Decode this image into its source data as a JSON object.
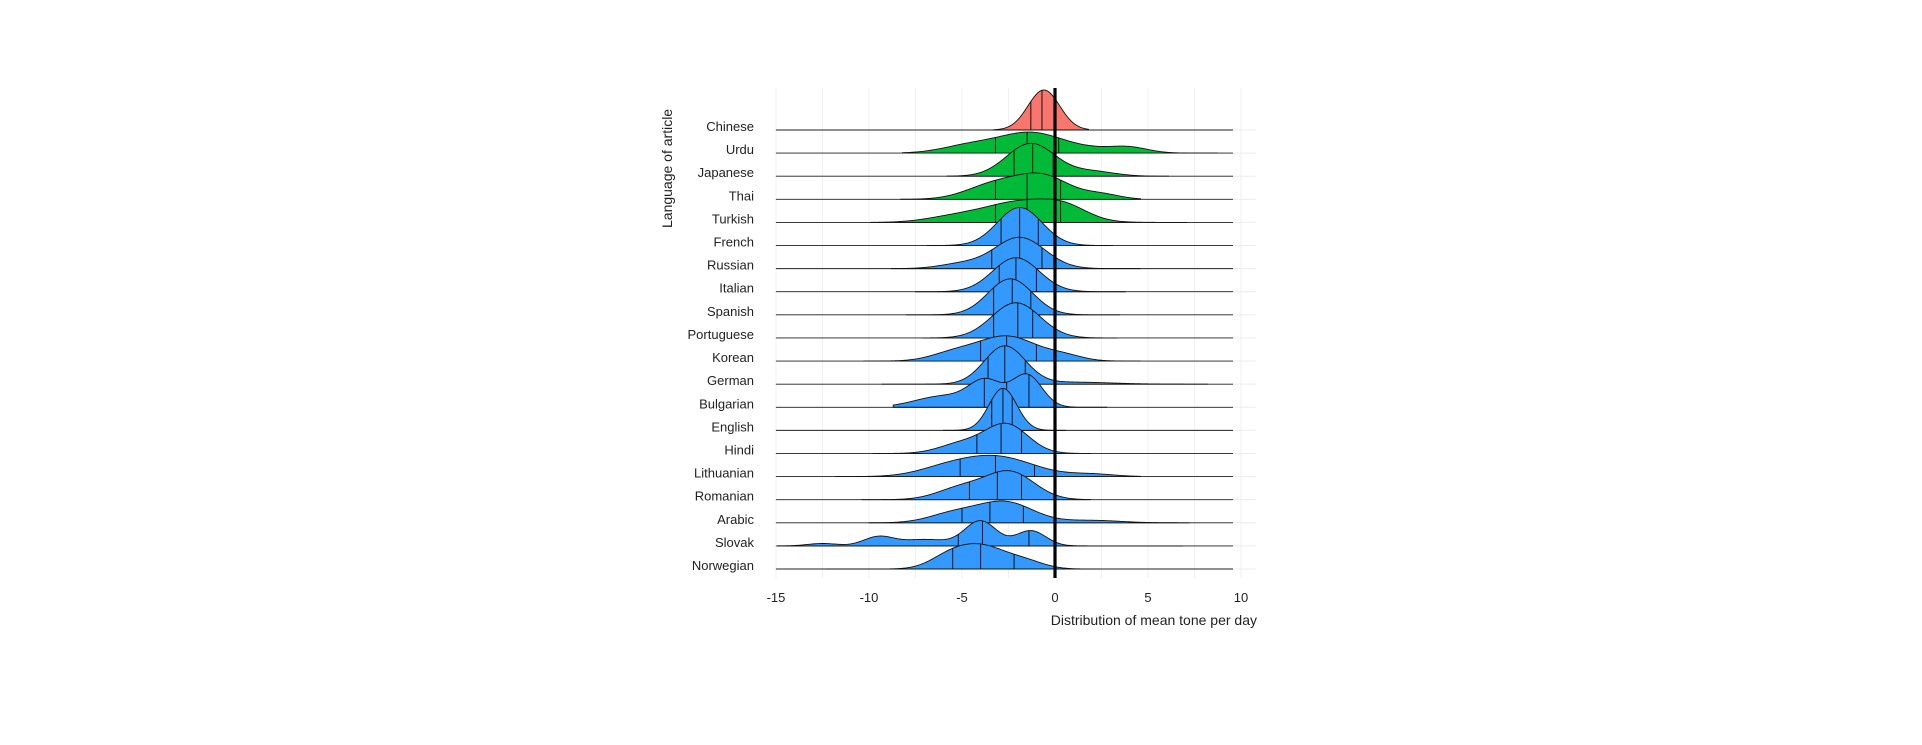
{
  "chart_data": {
    "type": "ridgeline",
    "title": "",
    "xlabel": "Distribution of mean tone per day",
    "ylabel": "Language of article",
    "xlim": [
      -15,
      10
    ],
    "xticks": [
      -15,
      -10,
      -5,
      0,
      5,
      10
    ],
    "reference_line_x": 0,
    "grid": true,
    "colors": {
      "red": "#F8766D",
      "green": "#00BA38",
      "blue": "#3399FF"
    },
    "series": [
      {
        "name": "Chinese",
        "color_group": "red",
        "quartiles": [
          -1.3,
          -0.7,
          -0.05
        ],
        "tail": [
          -3.3,
          1.8
        ],
        "peaks": [
          {
            "mu": -0.6,
            "sigma": 0.85,
            "h": 1.0
          }
        ]
      },
      {
        "name": "Urdu",
        "color_group": "green",
        "quartiles": [
          -3.2,
          -1.5,
          0.2
        ],
        "tail": [
          -8.2,
          8.7
        ],
        "peaks": [
          {
            "mu": -1.4,
            "sigma": 1.6,
            "h": 0.47
          },
          {
            "mu": -4.5,
            "sigma": 1.5,
            "h": 0.2
          },
          {
            "mu": 4.0,
            "sigma": 1.0,
            "h": 0.12
          },
          {
            "mu": 1.5,
            "sigma": 1.8,
            "h": 0.12
          }
        ]
      },
      {
        "name": "Japanese",
        "color_group": "green",
        "quartiles": [
          -2.2,
          -1.2,
          -0.1
        ],
        "tail": [
          -5.8,
          6.1
        ],
        "peaks": [
          {
            "mu": -1.3,
            "sigma": 1.3,
            "h": 0.82
          },
          {
            "mu": 2.0,
            "sigma": 1.2,
            "h": 0.12
          }
        ]
      },
      {
        "name": "Thai",
        "color_group": "green",
        "quartiles": [
          -3.2,
          -1.5,
          0.3
        ],
        "tail": [
          -8.3,
          4.6
        ],
        "peaks": [
          {
            "mu": -0.6,
            "sigma": 1.4,
            "h": 0.55
          },
          {
            "mu": -3.2,
            "sigma": 1.5,
            "h": 0.38
          },
          {
            "mu": 2.5,
            "sigma": 1.0,
            "h": 0.12
          }
        ]
      },
      {
        "name": "Turkish",
        "color_group": "green",
        "quartiles": [
          -3.2,
          -1.5,
          0.3
        ],
        "tail": [
          -9.9,
          7.1
        ],
        "peaks": [
          {
            "mu": -1.8,
            "sigma": 2.0,
            "h": 0.52
          },
          {
            "mu": 0.6,
            "sigma": 1.2,
            "h": 0.25
          },
          {
            "mu": -5.5,
            "sigma": 1.5,
            "h": 0.12
          }
        ]
      },
      {
        "name": "French",
        "color_group": "blue",
        "quartiles": [
          -2.9,
          -1.9,
          -0.9
        ],
        "tail": [
          -6.9,
          3.1
        ],
        "peaks": [
          {
            "mu": -1.9,
            "sigma": 1.2,
            "h": 0.95
          }
        ]
      },
      {
        "name": "Russian",
        "color_group": "blue",
        "quartiles": [
          -3.4,
          -1.9,
          -0.7
        ],
        "tail": [
          -8.8,
          4.6
        ],
        "peaks": [
          {
            "mu": -1.9,
            "sigma": 1.35,
            "h": 0.78
          },
          {
            "mu": -5.0,
            "sigma": 1.2,
            "h": 0.12
          }
        ]
      },
      {
        "name": "Italian",
        "color_group": "blue",
        "quartiles": [
          -3.0,
          -2.1,
          -1.0
        ],
        "tail": [
          -7.5,
          3.8
        ],
        "peaks": [
          {
            "mu": -2.1,
            "sigma": 1.25,
            "h": 0.85
          }
        ]
      },
      {
        "name": "Spanish",
        "color_group": "blue",
        "quartiles": [
          -3.3,
          -2.3,
          -1.3
        ],
        "tail": [
          -8.0,
          3.5
        ],
        "peaks": [
          {
            "mu": -2.4,
            "sigma": 1.2,
            "h": 0.9
          }
        ]
      },
      {
        "name": "Portuguese",
        "color_group": "blue",
        "quartiles": [
          -3.3,
          -2.0,
          -1.2
        ],
        "tail": [
          -7.1,
          3.3
        ],
        "peaks": [
          {
            "mu": -2.1,
            "sigma": 1.3,
            "h": 0.88
          }
        ]
      },
      {
        "name": "Korean",
        "color_group": "blue",
        "quartiles": [
          -4.0,
          -2.6,
          -1.0
        ],
        "tail": [
          -10.3,
          4.6
        ],
        "peaks": [
          {
            "mu": -2.6,
            "sigma": 1.6,
            "h": 0.62
          },
          {
            "mu": -5.5,
            "sigma": 1.2,
            "h": 0.18
          },
          {
            "mu": 0.5,
            "sigma": 1.0,
            "h": 0.12
          }
        ]
      },
      {
        "name": "German",
        "color_group": "blue",
        "quartiles": [
          -3.6,
          -2.7,
          -1.6
        ],
        "tail": [
          -9.3,
          8.2
        ],
        "peaks": [
          {
            "mu": -2.7,
            "sigma": 1.1,
            "h": 0.95
          },
          {
            "mu": 1.0,
            "sigma": 2.0,
            "h": 0.05
          }
        ]
      },
      {
        "name": "Bulgarian",
        "color_group": "blue",
        "quartiles": [
          -3.8,
          -2.6,
          -1.4
        ],
        "tail": [
          -8.7,
          2.8
        ],
        "peaks": [
          {
            "mu": -1.5,
            "sigma": 0.8,
            "h": 0.8
          },
          {
            "mu": -3.7,
            "sigma": 0.9,
            "h": 0.62
          },
          {
            "mu": -6.0,
            "sigma": 1.5,
            "h": 0.28
          }
        ]
      },
      {
        "name": "English",
        "color_group": "blue",
        "quartiles": [
          -3.4,
          -2.8,
          -2.3
        ],
        "tail": [
          -6.0,
          0.6
        ],
        "peaks": [
          {
            "mu": -2.8,
            "sigma": 0.75,
            "h": 1.05
          }
        ]
      },
      {
        "name": "Hindi",
        "color_group": "blue",
        "quartiles": [
          -4.2,
          -2.9,
          -1.8
        ],
        "tail": [
          -9.8,
          1.9
        ],
        "peaks": [
          {
            "mu": -2.6,
            "sigma": 1.15,
            "h": 0.72
          },
          {
            "mu": -5.0,
            "sigma": 1.2,
            "h": 0.25
          }
        ]
      },
      {
        "name": "Lithuanian",
        "color_group": "blue",
        "quartiles": [
          -5.1,
          -3.2,
          -1.1
        ],
        "tail": [
          -11.8,
          4.6
        ],
        "peaks": [
          {
            "mu": -3.2,
            "sigma": 2.0,
            "h": 0.5
          },
          {
            "mu": -6.0,
            "sigma": 1.5,
            "h": 0.15
          },
          {
            "mu": 2.0,
            "sigma": 1.2,
            "h": 0.06
          }
        ]
      },
      {
        "name": "Romanian",
        "color_group": "blue",
        "quartiles": [
          -4.6,
          -3.1,
          -1.8
        ],
        "tail": [
          -10.4,
          1.9
        ],
        "peaks": [
          {
            "mu": -2.4,
            "sigma": 1.3,
            "h": 0.68
          },
          {
            "mu": -5.0,
            "sigma": 1.3,
            "h": 0.3
          }
        ]
      },
      {
        "name": "Arabic",
        "color_group": "blue",
        "quartiles": [
          -5.0,
          -3.5,
          -1.7
        ],
        "tail": [
          -10.0,
          7.2
        ],
        "peaks": [
          {
            "mu": -2.7,
            "sigma": 1.5,
            "h": 0.52
          },
          {
            "mu": -5.5,
            "sigma": 1.3,
            "h": 0.22
          },
          {
            "mu": 2.0,
            "sigma": 1.5,
            "h": 0.06
          }
        ]
      },
      {
        "name": "Slovak",
        "color_group": "blue",
        "quartiles": [
          -5.2,
          -3.9,
          -1.4
        ],
        "tail": [
          -14.9,
          6.9
        ],
        "peaks": [
          {
            "mu": -4.0,
            "sigma": 0.85,
            "h": 0.62
          },
          {
            "mu": -1.3,
            "sigma": 0.8,
            "h": 0.38
          },
          {
            "mu": -9.5,
            "sigma": 0.8,
            "h": 0.22
          },
          {
            "mu": -7.0,
            "sigma": 1.3,
            "h": 0.16
          },
          {
            "mu": -12.5,
            "sigma": 0.8,
            "h": 0.06
          }
        ]
      },
      {
        "name": "Norwegian",
        "color_group": "blue",
        "quartiles": [
          -5.5,
          -4.0,
          -2.2
        ],
        "tail": [
          -12.3,
          2.4
        ],
        "peaks": [
          {
            "mu": -4.0,
            "sigma": 1.4,
            "h": 0.58
          },
          {
            "mu": -5.8,
            "sigma": 1.0,
            "h": 0.2
          },
          {
            "mu": -1.5,
            "sigma": 1.0,
            "h": 0.15
          }
        ]
      }
    ]
  }
}
